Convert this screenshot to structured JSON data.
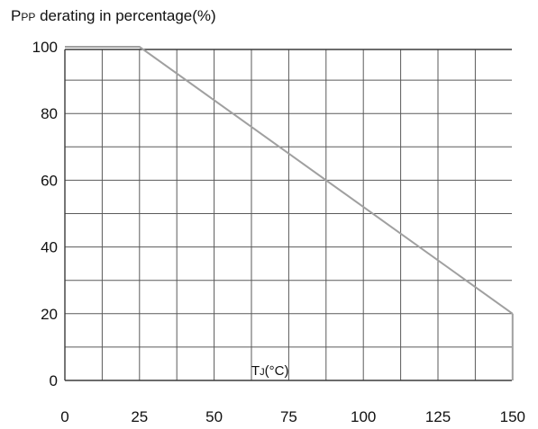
{
  "chart_data": {
    "type": "line",
    "title": {
      "main": "P",
      "sub": "PP",
      "rest": " derating in percentage(%)"
    },
    "xlabel": {
      "main": "T",
      "sub": "J",
      "rest": "(°C)"
    },
    "x_ticks": [
      "0",
      "25",
      "50",
      "75",
      "100",
      "125",
      "150"
    ],
    "y_ticks": [
      "0",
      "20",
      "40",
      "60",
      "80",
      "100"
    ],
    "xlim": [
      0,
      150
    ],
    "ylim": [
      0,
      100
    ],
    "grid": true,
    "x_grid_step": 12.5,
    "y_grid_step": 10,
    "series": [
      {
        "x": [
          0,
          25,
          150
        ],
        "y": [
          100,
          100,
          20
        ]
      }
    ],
    "colors": {
      "series": "#a0a0a0",
      "grid": "#5a5a5a"
    }
  }
}
